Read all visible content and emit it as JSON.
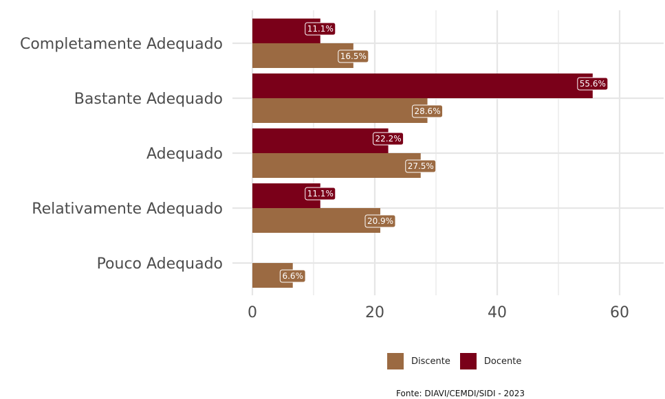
{
  "chart_data": {
    "type": "bar",
    "orientation": "horizontal",
    "categories": [
      "Completamente Adequado",
      "Bastante Adequado",
      "Adequado",
      "Relativamente Adequado",
      "Pouco Adequado"
    ],
    "series": [
      {
        "name": "Docente",
        "color": "#7a0019",
        "values": [
          11.1,
          55.6,
          22.2,
          11.1,
          null
        ],
        "labels": [
          "11.1%",
          "55.6%",
          "22.2%",
          "11.1%",
          null
        ]
      },
      {
        "name": "Discente",
        "color": "#9b6a42",
        "values": [
          16.5,
          28.6,
          27.5,
          20.9,
          6.6
        ],
        "labels": [
          "16.5%",
          "28.6%",
          "27.5%",
          "20.9%",
          "6.6%"
        ]
      }
    ],
    "xticks": [
      "0",
      "20",
      "40",
      "60"
    ],
    "xlim": [
      0,
      67
    ],
    "grid": true,
    "legend_position": "bottom",
    "caption": "Fonte: DIAVI/CEMDI/SIDI - 2023"
  },
  "legend": [
    {
      "label": "Discente",
      "color": "#9b6a42"
    },
    {
      "label": "Docente",
      "color": "#7a0019"
    }
  ]
}
